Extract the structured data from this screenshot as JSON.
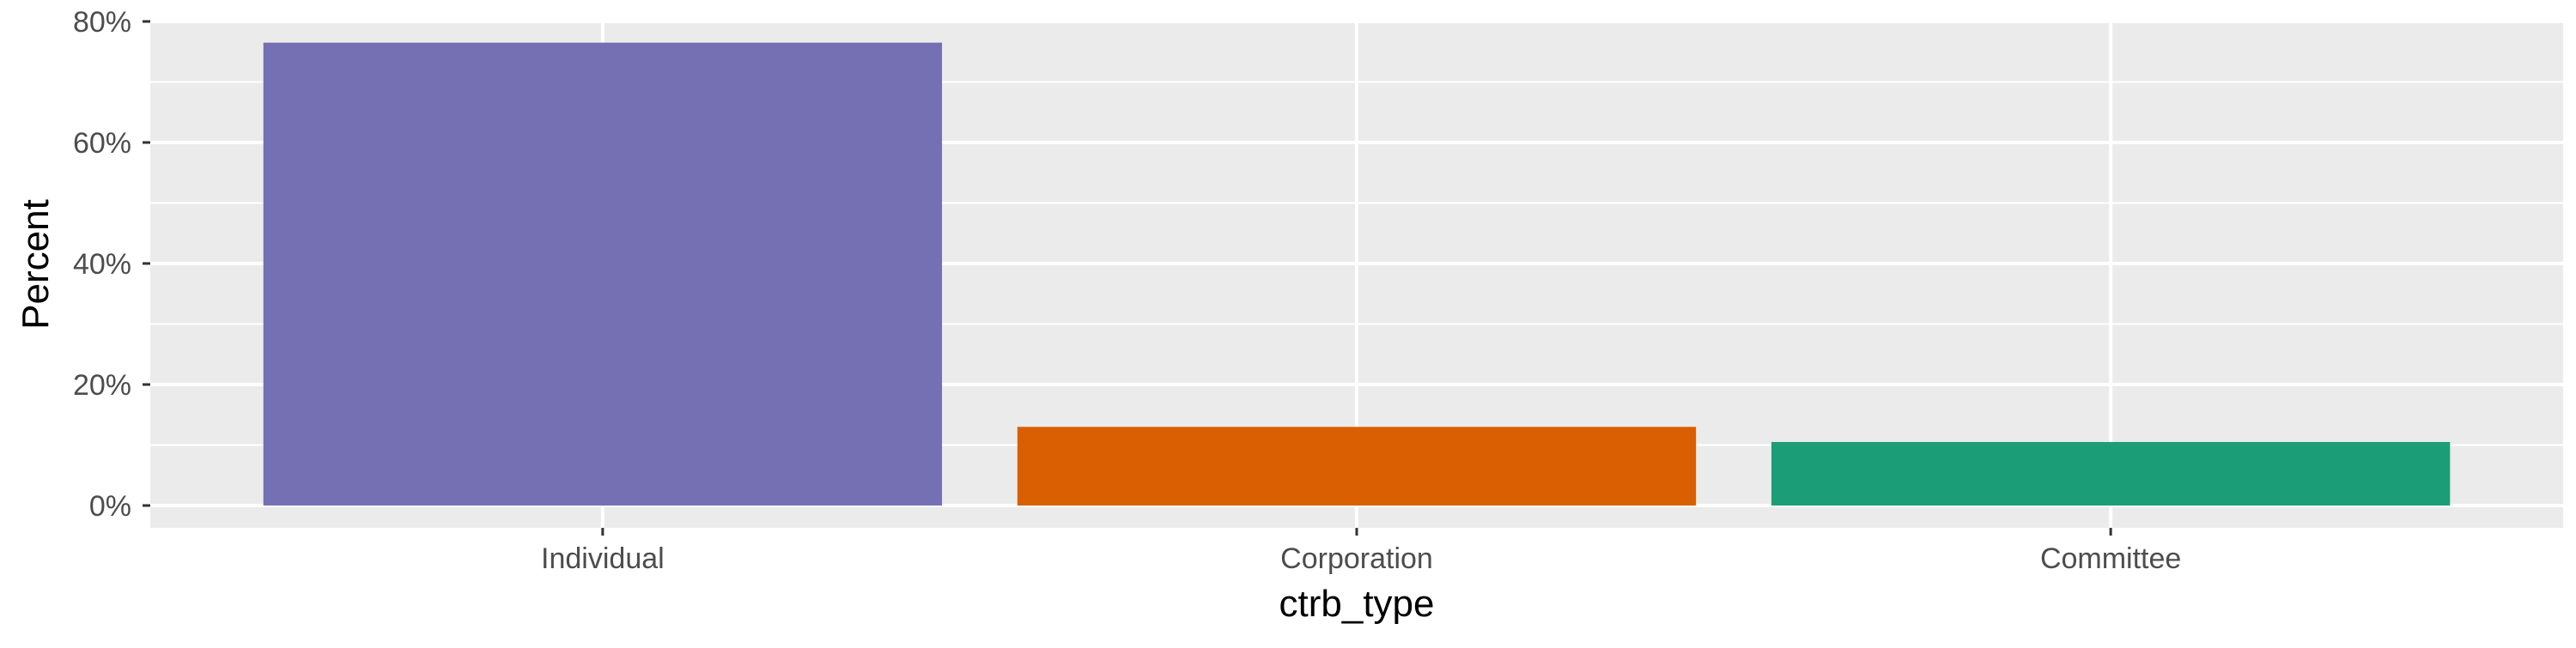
{
  "chart_data": {
    "type": "bar",
    "title": "",
    "xlabel": "ctrb_type",
    "ylabel": "Percent",
    "categories": [
      "Individual",
      "Corporation",
      "Committee"
    ],
    "values": [
      76.5,
      13.0,
      10.5
    ],
    "value_unit": "%",
    "ylim": [
      0,
      80
    ],
    "y_ticks": [
      0,
      20,
      40,
      60,
      80
    ],
    "y_tick_labels": [
      "0%",
      "20%",
      "40%",
      "60%",
      "80%"
    ],
    "grid": true,
    "legend": "none",
    "colors": [
      "#7570b3",
      "#d95f02",
      "#1b9e77"
    ],
    "panel_background": "#ebebeb",
    "gridline_color": "#ffffff"
  }
}
